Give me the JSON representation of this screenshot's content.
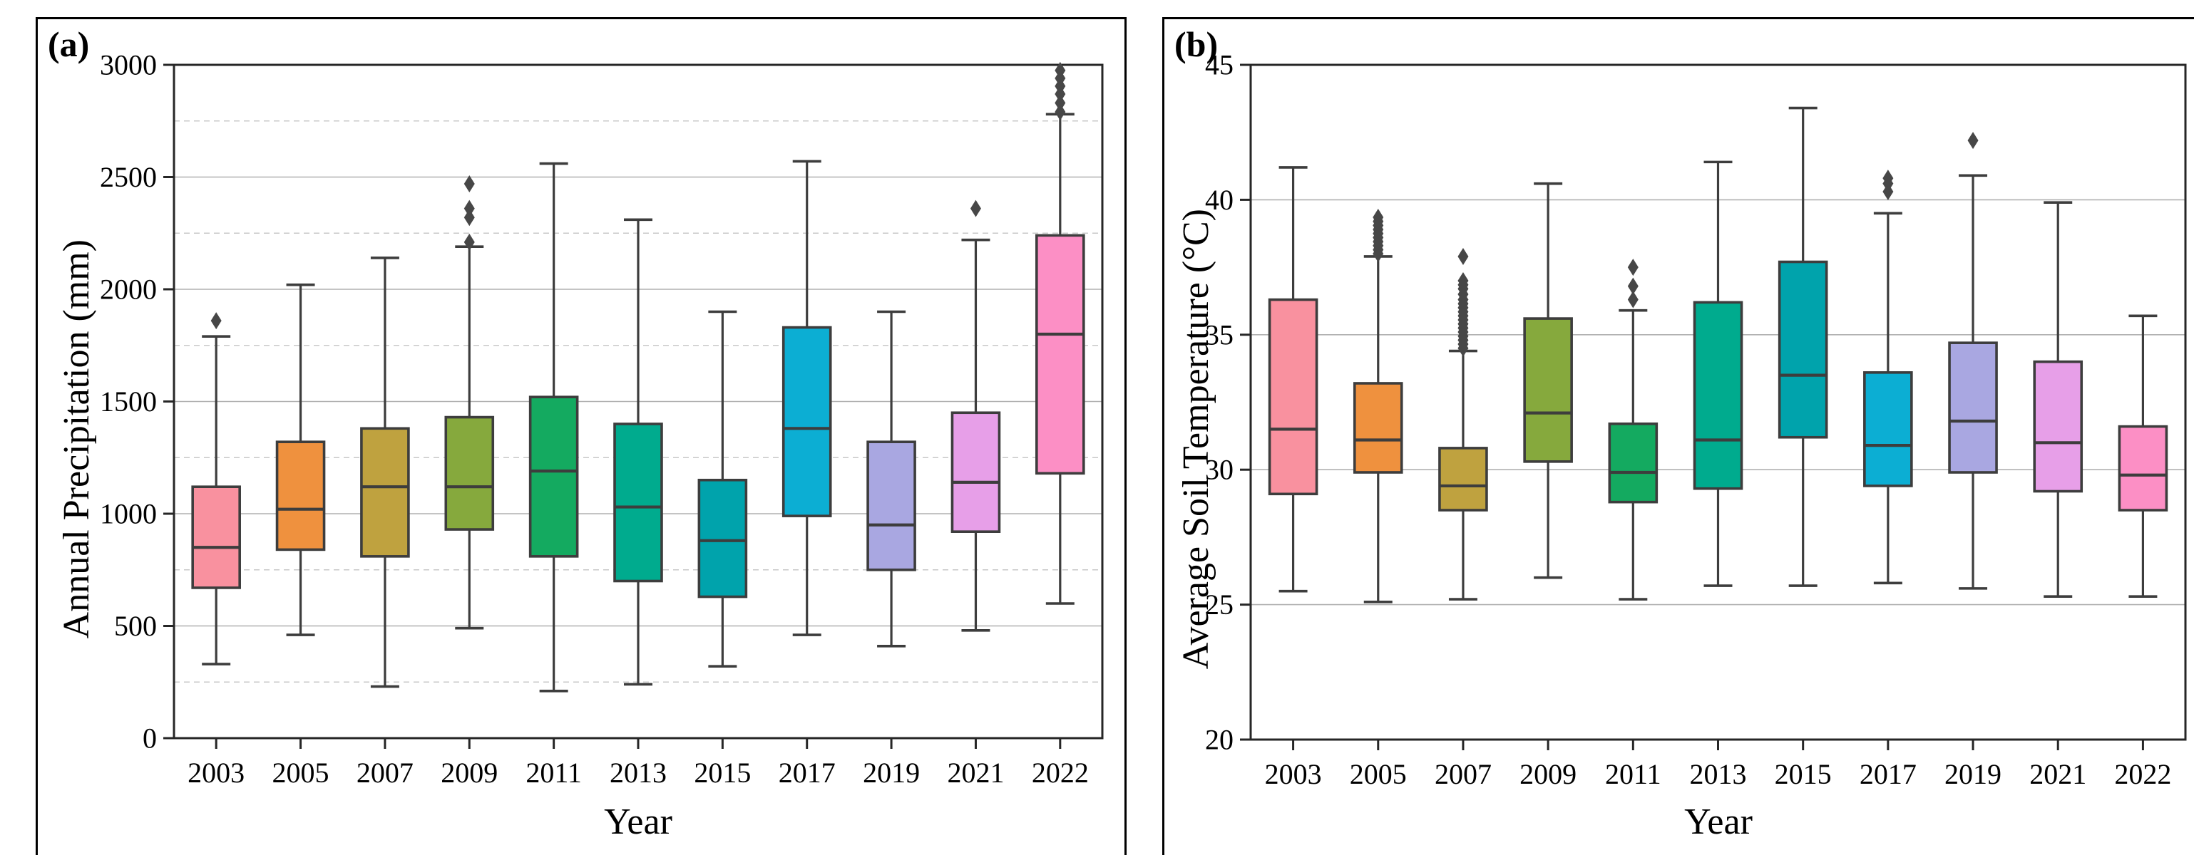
{
  "style": {
    "background": "#ffffff",
    "frame_border": "#000000",
    "axis_spine": "#262626",
    "grid_major": "#b0b0b0",
    "grid_minor": "#c8c8c8",
    "box_edge": "#3d3d3d",
    "median_line": "#3d3d3d",
    "whisker": "#3d3d3d",
    "outlier": "#474747",
    "text": "#000000"
  },
  "chart_data": [
    {
      "type": "boxplot",
      "panel_label": "(a)",
      "title": "",
      "xlabel": "Year",
      "ylabel": "Annual Precipitation (mm)",
      "ylim": [
        0,
        3000
      ],
      "yticks": [
        0,
        500,
        1000,
        1500,
        2000,
        2500,
        3000
      ],
      "grid_major": [
        500,
        1000,
        1500,
        2000,
        2500
      ],
      "grid_minor": [
        250,
        750,
        1250,
        1750,
        2250,
        2750
      ],
      "legend": "none",
      "categories": [
        "2003",
        "2005",
        "2007",
        "2009",
        "2011",
        "2013",
        "2015",
        "2017",
        "2019",
        "2021",
        "2022"
      ],
      "series": [
        {
          "year": "2003",
          "color": "#f9919f",
          "whisker_low": 330,
          "q1": 670,
          "median": 850,
          "q3": 1120,
          "whisker_high": 1790,
          "outliers": [
            1860
          ]
        },
        {
          "year": "2005",
          "color": "#ef913e",
          "whisker_low": 460,
          "q1": 840,
          "median": 1020,
          "q3": 1320,
          "whisker_high": 2020,
          "outliers": []
        },
        {
          "year": "2007",
          "color": "#bfa23f",
          "whisker_low": 230,
          "q1": 810,
          "median": 1120,
          "q3": 1380,
          "whisker_high": 2140,
          "outliers": []
        },
        {
          "year": "2009",
          "color": "#86a93d",
          "whisker_low": 490,
          "q1": 930,
          "median": 1120,
          "q3": 1430,
          "whisker_high": 2190,
          "outliers": [
            2210,
            2320,
            2360,
            2470
          ]
        },
        {
          "year": "2011",
          "color": "#14aa60",
          "whisker_low": 210,
          "q1": 810,
          "median": 1190,
          "q3": 1520,
          "whisker_high": 2560,
          "outliers": []
        },
        {
          "year": "2013",
          "color": "#00ab8e",
          "whisker_low": 240,
          "q1": 700,
          "median": 1030,
          "q3": 1400,
          "whisker_high": 2310,
          "outliers": []
        },
        {
          "year": "2015",
          "color": "#00a3ac",
          "whisker_low": 320,
          "q1": 630,
          "median": 880,
          "q3": 1150,
          "whisker_high": 1900,
          "outliers": []
        },
        {
          "year": "2017",
          "color": "#0caed3",
          "whisker_low": 460,
          "q1": 990,
          "median": 1380,
          "q3": 1830,
          "whisker_high": 2570,
          "outliers": []
        },
        {
          "year": "2019",
          "color": "#a9a7e1",
          "whisker_low": 410,
          "q1": 750,
          "median": 950,
          "q3": 1320,
          "whisker_high": 1900,
          "outliers": []
        },
        {
          "year": "2021",
          "color": "#e79fe8",
          "whisker_low": 480,
          "q1": 920,
          "median": 1140,
          "q3": 1450,
          "whisker_high": 2220,
          "outliers": [
            2360
          ]
        },
        {
          "year": "2022",
          "color": "#fc8fc5",
          "whisker_low": 600,
          "q1": 1180,
          "median": 1800,
          "q3": 2240,
          "whisker_high": 2780,
          "outliers": [
            2790,
            2830,
            2870,
            2905,
            2940,
            2975
          ]
        }
      ]
    },
    {
      "type": "boxplot",
      "panel_label": "(b)",
      "title": "",
      "xlabel": "Year",
      "ylabel": "Average Soil Temperature (°C)",
      "ylim": [
        20,
        45
      ],
      "yticks": [
        20,
        25,
        30,
        35,
        40,
        45
      ],
      "grid_major": [
        25,
        30,
        35,
        40
      ],
      "grid_minor": [],
      "legend": "none",
      "categories": [
        "2003",
        "2005",
        "2007",
        "2009",
        "2011",
        "2013",
        "2015",
        "2017",
        "2019",
        "2021",
        "2022"
      ],
      "series": [
        {
          "year": "2003",
          "color": "#f9919f",
          "whisker_low": 25.5,
          "q1": 29.1,
          "median": 31.5,
          "q3": 36.3,
          "whisker_high": 41.2,
          "outliers": []
        },
        {
          "year": "2005",
          "color": "#ef913e",
          "whisker_low": 25.1,
          "q1": 29.9,
          "median": 31.1,
          "q3": 33.2,
          "whisker_high": 37.9,
          "outliers": [
            38.0,
            38.15,
            38.3,
            38.45,
            38.6,
            38.75,
            38.9,
            39.05,
            39.2,
            39.35
          ]
        },
        {
          "year": "2007",
          "color": "#bfa23f",
          "whisker_low": 25.2,
          "q1": 28.5,
          "median": 29.4,
          "q3": 30.8,
          "whisker_high": 34.4,
          "outliers": [
            34.5,
            34.65,
            34.8,
            34.95,
            35.1,
            35.25,
            35.4,
            35.55,
            35.7,
            35.85,
            36.0,
            36.15,
            36.3,
            36.5,
            36.7,
            36.85,
            37.0,
            37.9
          ]
        },
        {
          "year": "2009",
          "color": "#86a93d",
          "whisker_low": 26.0,
          "q1": 30.3,
          "median": 32.1,
          "q3": 35.6,
          "whisker_high": 40.6,
          "outliers": []
        },
        {
          "year": "2011",
          "color": "#14aa60",
          "whisker_low": 25.2,
          "q1": 28.8,
          "median": 29.9,
          "q3": 31.7,
          "whisker_high": 35.9,
          "outliers": [
            36.3,
            36.8,
            37.5
          ]
        },
        {
          "year": "2013",
          "color": "#00ab8e",
          "whisker_low": 25.7,
          "q1": 29.3,
          "median": 31.1,
          "q3": 36.2,
          "whisker_high": 41.4,
          "outliers": []
        },
        {
          "year": "2015",
          "color": "#00a3ac",
          "whisker_low": 25.7,
          "q1": 31.2,
          "median": 33.5,
          "q3": 37.7,
          "whisker_high": 43.4,
          "outliers": []
        },
        {
          "year": "2017",
          "color": "#0caed3",
          "whisker_low": 25.8,
          "q1": 29.4,
          "median": 30.9,
          "q3": 33.6,
          "whisker_high": 39.5,
          "outliers": [
            40.3,
            40.6,
            40.8
          ]
        },
        {
          "year": "2019",
          "color": "#a9a7e1",
          "whisker_low": 25.6,
          "q1": 29.9,
          "median": 31.8,
          "q3": 34.7,
          "whisker_high": 40.9,
          "outliers": [
            42.2
          ]
        },
        {
          "year": "2021",
          "color": "#e79fe8",
          "whisker_low": 25.3,
          "q1": 29.2,
          "median": 31.0,
          "q3": 34.0,
          "whisker_high": 39.9,
          "outliers": []
        },
        {
          "year": "2022",
          "color": "#fc8fc5",
          "whisker_low": 25.3,
          "q1": 28.5,
          "median": 29.8,
          "q3": 31.6,
          "whisker_high": 35.7,
          "outliers": []
        }
      ]
    }
  ]
}
